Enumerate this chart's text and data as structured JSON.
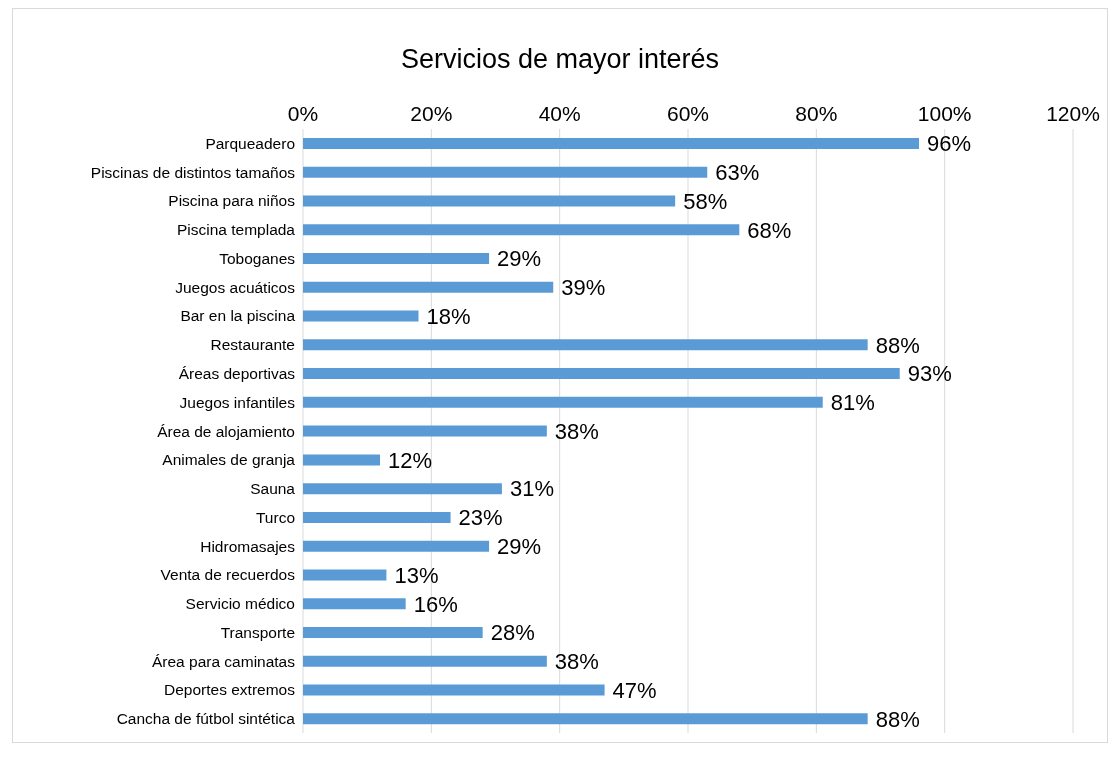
{
  "chart_data": {
    "type": "bar",
    "orientation": "horizontal",
    "title": "Servicios de mayor interés",
    "categories": [
      "Parqueadero",
      "Piscinas de distintos tamaños",
      "Piscina para niños",
      "Piscina templada",
      "Toboganes",
      "Juegos acuáticos",
      "Bar en la piscina",
      "Restaurante",
      "Áreas deportivas",
      "Juegos infantiles",
      "Área de alojamiento",
      "Animales de granja",
      "Sauna",
      "Turco",
      "Hidromasajes",
      "Venta de recuerdos",
      "Servicio médico",
      "Transporte",
      "Área para caminatas",
      "Deportes extremos",
      "Cancha de fútbol sintética"
    ],
    "values": [
      96,
      63,
      58,
      68,
      29,
      39,
      18,
      88,
      93,
      81,
      38,
      12,
      31,
      23,
      29,
      13,
      16,
      28,
      38,
      47,
      88
    ],
    "value_labels": [
      "96%",
      "63%",
      "58%",
      "68%",
      "29%",
      "39%",
      "18%",
      "88%",
      "93%",
      "81%",
      "38%",
      "12%",
      "31%",
      "23%",
      "29%",
      "13%",
      "16%",
      "28%",
      "38%",
      "47%",
      "88%"
    ],
    "color": "#5b9bd5",
    "xlim": [
      0,
      120
    ],
    "xticks": [
      {
        "value": 0,
        "label": "0%"
      },
      {
        "value": 20,
        "label": "20%"
      },
      {
        "value": 40,
        "label": "40%"
      },
      {
        "value": 60,
        "label": "60%"
      },
      {
        "value": 80,
        "label": "80%"
      },
      {
        "value": 100,
        "label": "100%"
      },
      {
        "value": 120,
        "label": "120%"
      }
    ],
    "grid": "x",
    "legend": false
  }
}
